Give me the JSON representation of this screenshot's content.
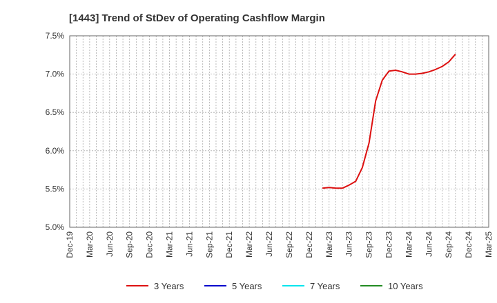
{
  "chart_data": {
    "type": "line",
    "title": "[1443]  Trend of StDev of Operating Cashflow Margin",
    "xlabel": "",
    "ylabel": "",
    "x_ticks": [
      "Dec-19",
      "Mar-20",
      "Jun-20",
      "Sep-20",
      "Dec-20",
      "Mar-21",
      "Jun-21",
      "Sep-21",
      "Dec-21",
      "Mar-22",
      "Jun-22",
      "Sep-22",
      "Dec-22",
      "Mar-23",
      "Jun-23",
      "Sep-23",
      "Dec-23",
      "Mar-24",
      "Jun-24",
      "Sep-24",
      "Dec-24",
      "Mar-25"
    ],
    "y_ticks": [
      "5.0%",
      "5.5%",
      "6.0%",
      "6.5%",
      "7.0%",
      "7.5%"
    ],
    "ylim": [
      5.0,
      7.5
    ],
    "x_range": [
      "Dec-19",
      "Mar-25"
    ],
    "grid": true,
    "legend_position": "bottom",
    "series": [
      {
        "name": "3 Years",
        "color": "#dd1111",
        "points": [
          {
            "x": "Feb-23",
            "y": 5.51
          },
          {
            "x": "Mar-23",
            "y": 5.52
          },
          {
            "x": "Apr-23",
            "y": 5.51
          },
          {
            "x": "May-23",
            "y": 5.51
          },
          {
            "x": "Jun-23",
            "y": 5.55
          },
          {
            "x": "Jul-23",
            "y": 5.6
          },
          {
            "x": "Aug-23",
            "y": 5.78
          },
          {
            "x": "Sep-23",
            "y": 6.1
          },
          {
            "x": "Oct-23",
            "y": 6.65
          },
          {
            "x": "Nov-23",
            "y": 6.92
          },
          {
            "x": "Dec-23",
            "y": 7.04
          },
          {
            "x": "Jan-24",
            "y": 7.05
          },
          {
            "x": "Feb-24",
            "y": 7.03
          },
          {
            "x": "Mar-24",
            "y": 7.0
          },
          {
            "x": "Apr-24",
            "y": 7.0
          },
          {
            "x": "May-24",
            "y": 7.01
          },
          {
            "x": "Jun-24",
            "y": 7.03
          },
          {
            "x": "Jul-24",
            "y": 7.06
          },
          {
            "x": "Aug-24",
            "y": 7.1
          },
          {
            "x": "Sep-24",
            "y": 7.16
          },
          {
            "x": "Oct-24",
            "y": 7.26
          }
        ]
      },
      {
        "name": "5 Years",
        "color": "#0000cc",
        "points": []
      },
      {
        "name": "7 Years",
        "color": "#00e5ee",
        "points": []
      },
      {
        "name": "10 Years",
        "color": "#228b22",
        "points": []
      }
    ]
  }
}
